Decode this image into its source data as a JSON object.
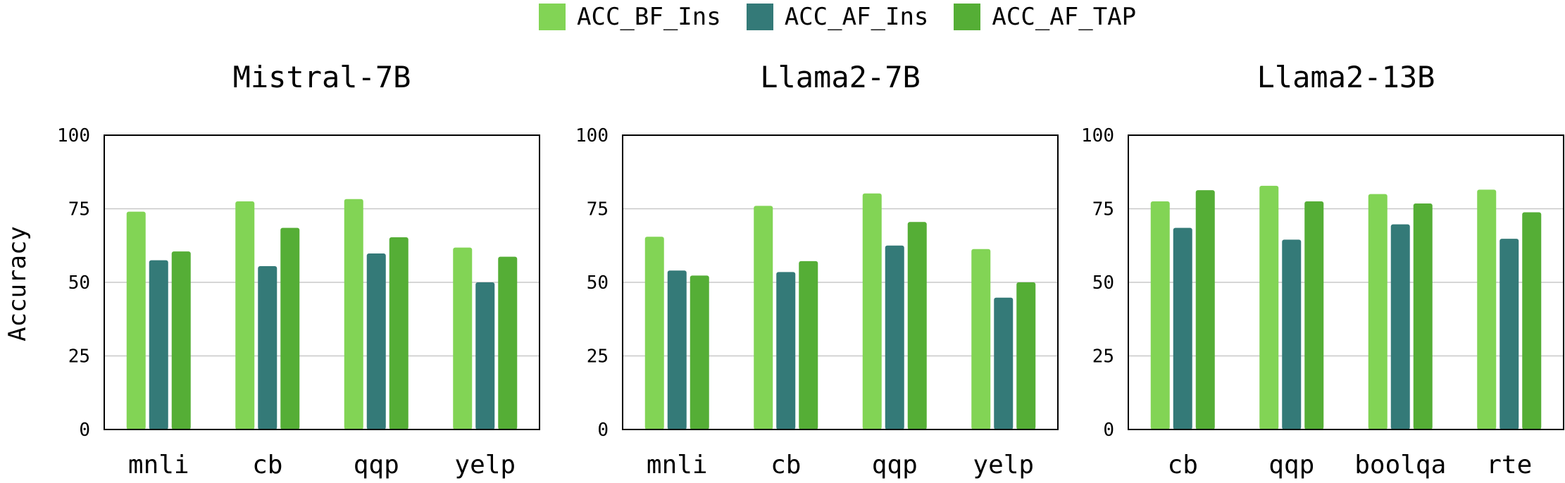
{
  "legend": [
    {
      "label": "ACC_BF_Ins",
      "color": "#82d455"
    },
    {
      "label": "ACC_AF_Ins",
      "color": "#347a78"
    },
    {
      "label": "ACC_AF_TAP",
      "color": "#55ae36"
    }
  ],
  "ylabel": "Accuracy",
  "chart_data": [
    {
      "type": "bar",
      "title": "Mistral-7B",
      "categories": [
        "mnli",
        "cb",
        "qqp",
        "yelp"
      ],
      "ylim": [
        0,
        100
      ],
      "yticks": [
        0,
        25,
        50,
        75,
        100
      ],
      "grid": true,
      "series": [
        {
          "name": "ACC_BF_Ins",
          "values": [
            74,
            77.5,
            78.3,
            61.8
          ]
        },
        {
          "name": "ACC_AF_Ins",
          "values": [
            57.5,
            55.5,
            59.8,
            50
          ]
        },
        {
          "name": "ACC_AF_TAP",
          "values": [
            60.5,
            68.5,
            65.3,
            58.7
          ]
        }
      ]
    },
    {
      "type": "bar",
      "title": "Llama2-7B",
      "categories": [
        "mnli",
        "cb",
        "qqp",
        "yelp"
      ],
      "ylim": [
        0,
        100
      ],
      "yticks": [
        0,
        25,
        50,
        75,
        100
      ],
      "grid": true,
      "series": [
        {
          "name": "ACC_BF_Ins",
          "values": [
            65.5,
            76,
            80.2,
            61.3
          ]
        },
        {
          "name": "ACC_AF_Ins",
          "values": [
            54,
            53.5,
            62.5,
            44.8
          ]
        },
        {
          "name": "ACC_AF_TAP",
          "values": [
            52.3,
            57.2,
            70.5,
            50
          ]
        }
      ]
    },
    {
      "type": "bar",
      "title": "Llama2-13B",
      "categories": [
        "cb",
        "qqp",
        "boolqa",
        "rte"
      ],
      "ylim": [
        0,
        100
      ],
      "yticks": [
        0,
        25,
        50,
        75,
        100
      ],
      "grid": true,
      "series": [
        {
          "name": "ACC_BF_Ins",
          "values": [
            77.5,
            82.8,
            80,
            81.5
          ]
        },
        {
          "name": "ACC_AF_Ins",
          "values": [
            68.5,
            64.5,
            69.7,
            64.8
          ]
        },
        {
          "name": "ACC_AF_TAP",
          "values": [
            81.3,
            77.5,
            76.8,
            73.8
          ]
        }
      ]
    }
  ]
}
